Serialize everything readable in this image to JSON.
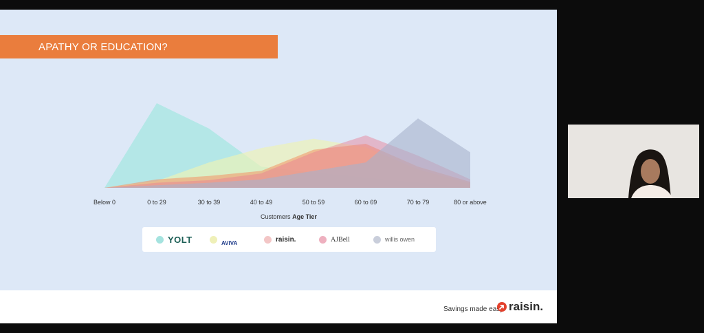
{
  "slide": {
    "title": "APATHY OR EDUCATION?",
    "footer_tagline": "Savings made easy.",
    "footer_logo": "raisin."
  },
  "legend": {
    "items": [
      {
        "name": "YOLT",
        "color": "#a5e3df"
      },
      {
        "name": "AVIVA",
        "color": "#eff0b8"
      },
      {
        "name": "raisin.",
        "color": "#f3c6c6"
      },
      {
        "name": "AJBell",
        "color": "#eeb0bf"
      },
      {
        "name": "willis owen",
        "color": "#c9cedb"
      }
    ]
  },
  "chart_data": {
    "type": "area",
    "xlabel_prefix": "Customers",
    "xlabel_bold": "Age Tier",
    "categories": [
      "Below 0",
      "0 to 29",
      "30 to 39",
      "40 to 49",
      "50 to 59",
      "60 to 69",
      "70 to 79",
      "80 or above"
    ],
    "ylim": [
      0,
      100
    ],
    "series": [
      {
        "name": "YOLT",
        "color": "#9ee6df",
        "opacity": 0.65,
        "values": [
          0,
          100,
          70,
          25,
          18,
          12,
          6,
          0
        ]
      },
      {
        "name": "AVIVA",
        "color": "#eef3b4",
        "opacity": 0.65,
        "values": [
          0,
          8,
          30,
          47,
          58,
          48,
          22,
          5
        ]
      },
      {
        "name": "raisin.",
        "color": "#f19a6d",
        "opacity": 0.6,
        "values": [
          0,
          10,
          14,
          20,
          45,
          52,
          25,
          7
        ]
      },
      {
        "name": "AJBell",
        "color": "#e87c92",
        "opacity": 0.45,
        "values": [
          0,
          6,
          9,
          17,
          42,
          62,
          38,
          10
        ]
      },
      {
        "name": "willis owen",
        "color": "#a8b3cc",
        "opacity": 0.6,
        "values": [
          0,
          3,
          6,
          10,
          20,
          30,
          82,
          42
        ]
      }
    ]
  }
}
